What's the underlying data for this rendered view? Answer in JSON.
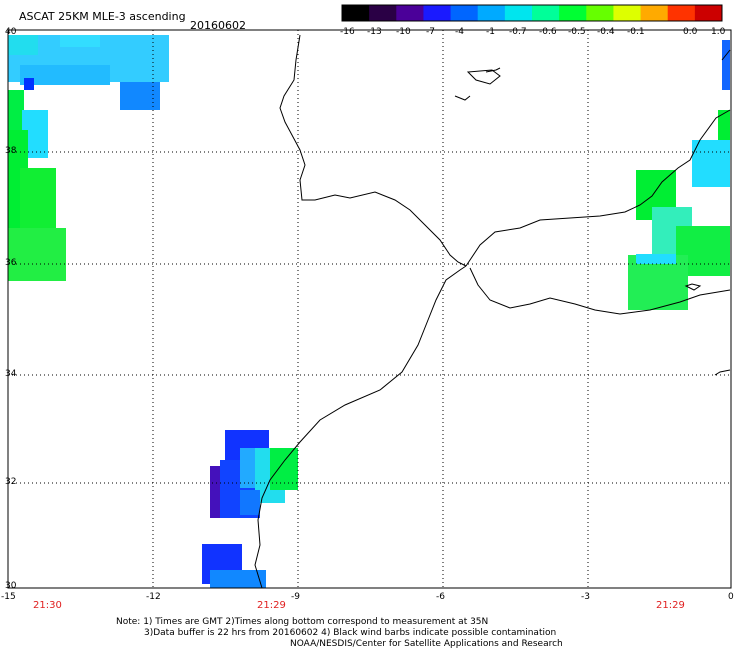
{
  "header": {
    "title": "ASCAT 25KM MLE-3 ascending",
    "date": "20160602"
  },
  "colorbar": {
    "labels": [
      "-16",
      "-13",
      "-10",
      "-7",
      "-4",
      "-1",
      "-0.7",
      "-0.6",
      "-0.5",
      "-0.4",
      "-0.1",
      "0.0",
      "1.0"
    ],
    "colors": [
      "#000000",
      "#2a0045",
      "#4b0099",
      "#1a1aff",
      "#0066ff",
      "#00aaff",
      "#00e5ee",
      "#00ff99",
      "#00ff33",
      "#66ff00",
      "#ddff00",
      "#ffaa00",
      "#ff3300",
      "#cc0000"
    ]
  },
  "axes": {
    "x_ticks": [
      "-15",
      "-12",
      "-9",
      "-6",
      "-3",
      "0"
    ],
    "y_ticks": [
      "40",
      "38",
      "36",
      "34",
      "32",
      "30"
    ]
  },
  "pass_times": [
    "21:30",
    "21:29",
    "21:29"
  ],
  "notes": [
    "Note: 1) Times are GMT 2)Times along bottom correspond to measurement at 35N",
    "3)Data buffer is 22 hrs from 20160602 4) Black wind barbs indicate possible contamination",
    "NOAA/NESDIS/Center for Satellite Applications and Research"
  ]
}
